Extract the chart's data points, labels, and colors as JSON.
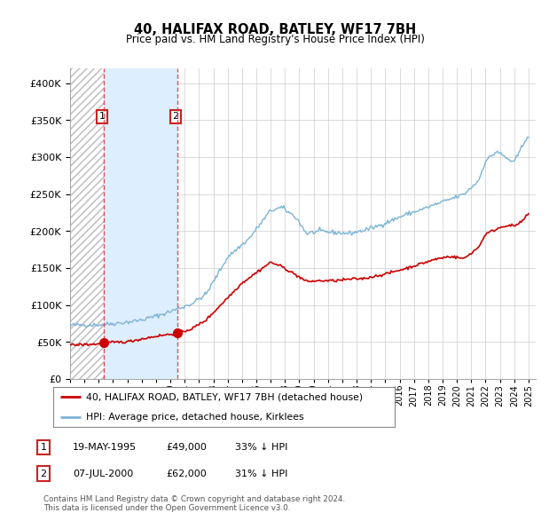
{
  "title": "40, HALIFAX ROAD, BATLEY, WF17 7BH",
  "subtitle": "Price paid vs. HM Land Registry's House Price Index (HPI)",
  "legend_line1": "40, HALIFAX ROAD, BATLEY, WF17 7BH (detached house)",
  "legend_line2": "HPI: Average price, detached house, Kirklees",
  "sale1_date": "19-MAY-1995",
  "sale1_price": 49000,
  "sale1_label": "33% ↓ HPI",
  "sale2_date": "07-JUL-2000",
  "sale2_price": 62000,
  "sale2_label": "31% ↓ HPI",
  "footnote": "Contains HM Land Registry data © Crown copyright and database right 2024.\nThis data is licensed under the Open Government Licence v3.0.",
  "hpi_color": "#7ab4d8",
  "price_color": "#cc0000",
  "sale_marker_color": "#cc0000",
  "sale_region_color": "#ddeeff",
  "ylim": [
    0,
    420000
  ],
  "xlim_start": 1993.0,
  "xlim_end": 2025.5,
  "sale1_t": 1995.37,
  "sale2_t": 2000.52,
  "hatch_end": 1995.37
}
